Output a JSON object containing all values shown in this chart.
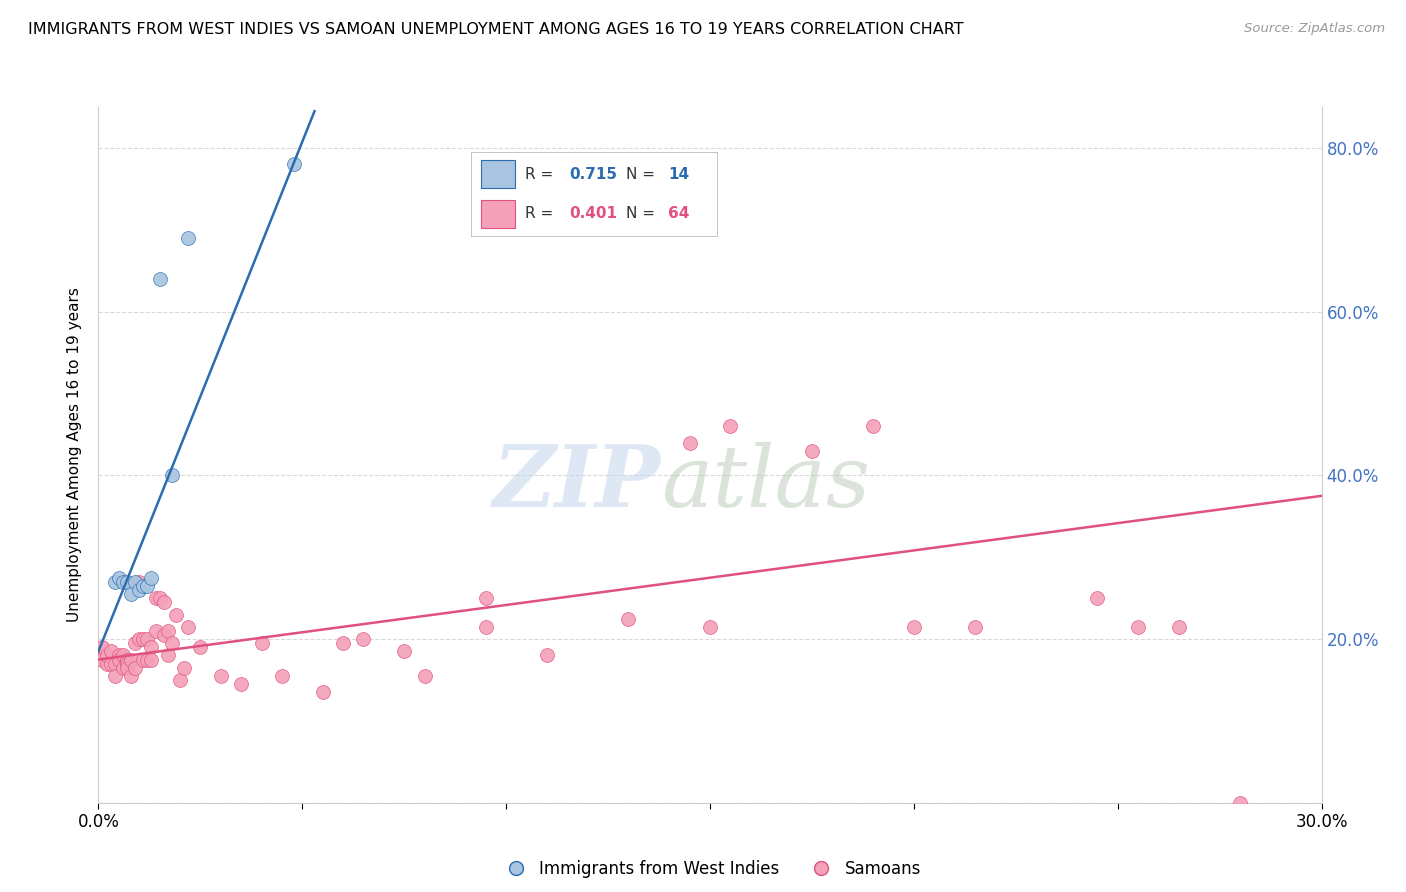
{
  "title": "IMMIGRANTS FROM WEST INDIES VS SAMOAN UNEMPLOYMENT AMONG AGES 16 TO 19 YEARS CORRELATION CHART",
  "source": "Source: ZipAtlas.com",
  "ylabel": "Unemployment Among Ages 16 to 19 years",
  "legend_r_blue": "R = 0.715",
  "legend_n_blue": "N = 14",
  "legend_r_pink": "R = 0.401",
  "legend_n_pink": "N = 64",
  "label_blue": "Immigrants from West Indies",
  "label_pink": "Samoans",
  "xlim": [
    0.0,
    0.3
  ],
  "ylim": [
    0.0,
    0.85
  ],
  "yticks": [
    0.0,
    0.2,
    0.4,
    0.6,
    0.8
  ],
  "ytick_labels": [
    "",
    "20.0%",
    "40.0%",
    "60.0%",
    "80.0%"
  ],
  "xticks": [
    0.0,
    0.05,
    0.1,
    0.15,
    0.2,
    0.25,
    0.3
  ],
  "xtick_labels": [
    "0.0%",
    "",
    "",
    "",
    "",
    "",
    "30.0%"
  ],
  "blue_color": "#a8c4e0",
  "blue_line_color": "#2b6cb0",
  "pink_color": "#f4a0b8",
  "pink_line_color": "#e05080",
  "blue_scatter_x": [
    0.004,
    0.005,
    0.006,
    0.007,
    0.008,
    0.009,
    0.01,
    0.011,
    0.012,
    0.013,
    0.015,
    0.018,
    0.022,
    0.048
  ],
  "blue_scatter_y": [
    0.27,
    0.275,
    0.27,
    0.27,
    0.255,
    0.27,
    0.26,
    0.265,
    0.265,
    0.275,
    0.64,
    0.4,
    0.69,
    0.78
  ],
  "pink_scatter_x": [
    0.001,
    0.001,
    0.002,
    0.002,
    0.003,
    0.003,
    0.004,
    0.004,
    0.005,
    0.005,
    0.006,
    0.006,
    0.007,
    0.007,
    0.007,
    0.008,
    0.008,
    0.009,
    0.009,
    0.01,
    0.01,
    0.011,
    0.011,
    0.012,
    0.012,
    0.013,
    0.013,
    0.014,
    0.014,
    0.015,
    0.016,
    0.016,
    0.017,
    0.017,
    0.018,
    0.019,
    0.02,
    0.021,
    0.022,
    0.025,
    0.03,
    0.035,
    0.04,
    0.045,
    0.055,
    0.06,
    0.065,
    0.075,
    0.08,
    0.095,
    0.11,
    0.13,
    0.145,
    0.155,
    0.175,
    0.19,
    0.2,
    0.215,
    0.245,
    0.255,
    0.265,
    0.28,
    0.095,
    0.15
  ],
  "pink_scatter_y": [
    0.19,
    0.175,
    0.17,
    0.18,
    0.185,
    0.17,
    0.17,
    0.155,
    0.18,
    0.175,
    0.18,
    0.165,
    0.175,
    0.17,
    0.165,
    0.175,
    0.155,
    0.195,
    0.165,
    0.27,
    0.2,
    0.2,
    0.175,
    0.2,
    0.175,
    0.19,
    0.175,
    0.25,
    0.21,
    0.25,
    0.245,
    0.205,
    0.21,
    0.18,
    0.195,
    0.23,
    0.15,
    0.165,
    0.215,
    0.19,
    0.155,
    0.145,
    0.195,
    0.155,
    0.135,
    0.195,
    0.2,
    0.185,
    0.155,
    0.215,
    0.18,
    0.225,
    0.44,
    0.46,
    0.43,
    0.46,
    0.215,
    0.215,
    0.25,
    0.215,
    0.215,
    0.0,
    0.25,
    0.215
  ],
  "blue_line_x": [
    0.0,
    0.053
  ],
  "blue_line_y": [
    0.185,
    0.845
  ],
  "pink_line_x": [
    0.0,
    0.3
  ],
  "pink_line_y": [
    0.175,
    0.375
  ]
}
